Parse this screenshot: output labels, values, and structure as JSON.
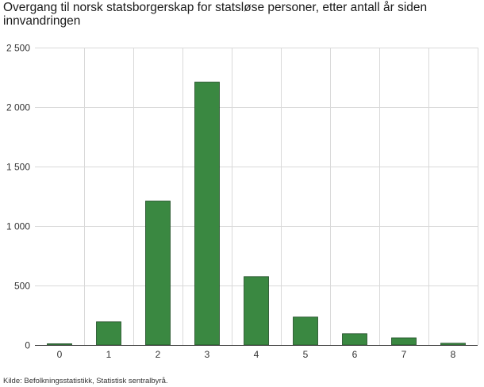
{
  "chart_data": {
    "type": "bar",
    "title": "Overgang til norsk statsborgerskap for statsløse personer, etter antall år siden innvandringen",
    "xlabel": "",
    "ylabel": "",
    "categories": [
      "0",
      "1",
      "2",
      "3",
      "4",
      "5",
      "6",
      "7",
      "8"
    ],
    "values": [
      10,
      195,
      1210,
      2210,
      575,
      235,
      95,
      60,
      15
    ],
    "ylim": [
      0,
      2500
    ],
    "yticks": [
      0,
      500,
      1000,
      1500,
      2000,
      2500
    ],
    "ytick_labels": [
      "0",
      "500",
      "1 000",
      "1 500",
      "2 000",
      "2 500"
    ],
    "grid": true,
    "legend": "none",
    "bar_color": "#3a8841",
    "bar_stroke": "#1f4a24"
  },
  "source": "Kilde: Befolkningsstatistikk, Statistisk sentralbyrå."
}
